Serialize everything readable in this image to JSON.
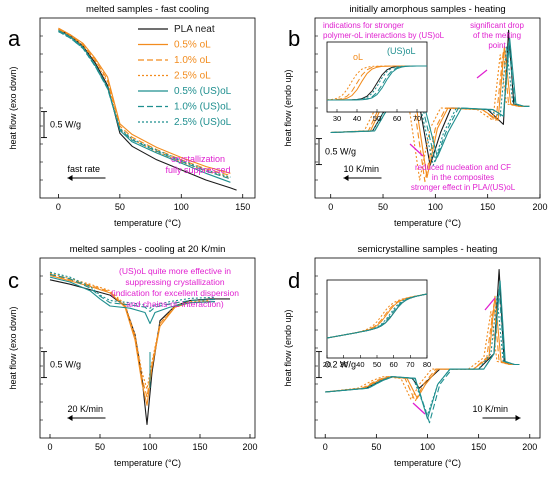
{
  "colors": {
    "pla": "#1a1a1a",
    "ol": "#f28c1e",
    "usol": "#1f8f8f",
    "annot": "#e020d0"
  },
  "legend": [
    "PLA neat",
    "0.5% oL",
    "1.0% oL",
    "2.5% oL",
    "0.5% (US)oL",
    "1.0% (US)oL",
    "2.5% (US)oL"
  ],
  "chart_data": [
    {
      "panel": "a",
      "type": "line",
      "title": "melted samples - fast cooling",
      "xlabel": "temperature (°C)",
      "ylabel": "heat flow (exo down)",
      "xlim": [
        -15,
        160
      ],
      "xticks": [
        0,
        50,
        100,
        150
      ],
      "scale_bar": "0.5 W/g",
      "rate_label": "fast rate",
      "annotations": [
        "crystallization",
        "fully suppressed"
      ],
      "legend_position": "top-right",
      "series": [
        {
          "name": "PLA neat",
          "x": [
            0,
            10,
            20,
            30,
            40,
            50,
            60,
            80,
            100,
            120,
            140,
            145
          ],
          "y": [
            2.9,
            2.78,
            2.6,
            2.3,
            1.9,
            1.05,
            0.82,
            0.58,
            0.4,
            0.22,
            0.08,
            0.04
          ]
        },
        {
          "name": "0.5% oL",
          "x": [
            0,
            10,
            20,
            30,
            40,
            50,
            60,
            80,
            100,
            120,
            140
          ],
          "y": [
            2.92,
            2.8,
            2.65,
            2.38,
            2.05,
            1.22,
            1.03,
            0.8,
            0.62,
            0.46,
            0.34
          ]
        },
        {
          "name": "1.0% oL",
          "x": [
            0,
            10,
            20,
            30,
            40,
            50,
            60,
            80,
            100,
            120,
            140
          ],
          "y": [
            2.9,
            2.79,
            2.63,
            2.35,
            2.0,
            1.18,
            0.98,
            0.76,
            0.58,
            0.42,
            0.3
          ]
        },
        {
          "name": "2.5% oL",
          "x": [
            0,
            10,
            20,
            30,
            40,
            50,
            60,
            80,
            100,
            120,
            140
          ],
          "y": [
            2.9,
            2.78,
            2.61,
            2.33,
            1.96,
            1.13,
            0.94,
            0.72,
            0.54,
            0.38,
            0.26
          ]
        },
        {
          "name": "0.5% (US)oL",
          "x": [
            0,
            10,
            20,
            30,
            40,
            50,
            60,
            80,
            100,
            120,
            140
          ],
          "y": [
            2.88,
            2.76,
            2.58,
            2.26,
            1.86,
            1.1,
            0.9,
            0.7,
            0.52,
            0.34,
            0.18
          ]
        },
        {
          "name": "1.0% (US)oL",
          "x": [
            0,
            10,
            20,
            30,
            40,
            50,
            60,
            80,
            100,
            120,
            140
          ],
          "y": [
            2.86,
            2.74,
            2.56,
            2.24,
            1.84,
            1.12,
            0.93,
            0.73,
            0.55,
            0.38,
            0.24
          ]
        },
        {
          "name": "2.5% (US)oL",
          "x": [
            0,
            10,
            20,
            30,
            40,
            50,
            60,
            80,
            100,
            120,
            140
          ],
          "y": [
            2.86,
            2.74,
            2.56,
            2.24,
            1.85,
            1.14,
            0.95,
            0.75,
            0.57,
            0.4,
            0.27
          ]
        }
      ]
    },
    {
      "panel": "b",
      "type": "line",
      "title": "initially amorphous samples - heating",
      "xlabel": "temperature (°C)",
      "ylabel": "heat flow (endo up)",
      "xlim": [
        -15,
        200
      ],
      "xticks": [
        0,
        50,
        100,
        150,
        200
      ],
      "scale_bar": "0.5 W/g",
      "rate_label": "10 K/min",
      "annotations": [
        "indications for stronger",
        "polymer-oL interactions by (US)oL",
        "significant drop",
        "of the melting",
        "point",
        "reduced nucleation and CF",
        "in the composites",
        "stronger effect in PLA/(US)oL"
      ],
      "inset": {
        "xlim": [
          25,
          75
        ],
        "xticks": [
          30,
          40,
          50,
          60,
          70
        ],
        "labels": [
          "oL",
          "(US)oL"
        ]
      },
      "series": [
        {
          "name": "PLA neat",
          "x": [
            0,
            40,
            55,
            65,
            85,
            95,
            105,
            115,
            150,
            165,
            170,
            175,
            180,
            190
          ],
          "y": [
            0,
            0.02,
            0.35,
            0.32,
            0.32,
            -0.4,
            0.0,
            0.3,
            0.28,
            0.1,
            1.25,
            0.35,
            0.32,
            0.32
          ]
        },
        {
          "name": "0.5% oL",
          "x": [
            0,
            38,
            50,
            62,
            82,
            92,
            102,
            112,
            145,
            160,
            166,
            172,
            180,
            190
          ],
          "y": [
            0,
            0.02,
            0.35,
            0.32,
            0.3,
            -0.55,
            0.05,
            0.3,
            0.28,
            0.15,
            1.05,
            0.35,
            0.32,
            0.32
          ]
        },
        {
          "name": "1.0% oL",
          "x": [
            0,
            36,
            48,
            60,
            80,
            90,
            100,
            110,
            145,
            158,
            165,
            170,
            180,
            190
          ],
          "y": [
            0,
            0.02,
            0.35,
            0.32,
            0.3,
            -0.6,
            0.05,
            0.3,
            0.28,
            0.15,
            1.0,
            0.35,
            0.32,
            0.32
          ]
        },
        {
          "name": "2.5% oL",
          "x": [
            0,
            32,
            45,
            58,
            75,
            85,
            95,
            105,
            140,
            155,
            162,
            168,
            180,
            190
          ],
          "y": [
            0,
            0.02,
            0.35,
            0.32,
            0.3,
            -0.58,
            0.05,
            0.3,
            0.28,
            0.15,
            0.95,
            0.35,
            0.32,
            0.32
          ]
        },
        {
          "name": "0.5% (US)oL",
          "x": [
            0,
            42,
            57,
            67,
            90,
            102,
            112,
            125,
            155,
            165,
            171,
            177,
            185,
            190
          ],
          "y": [
            0,
            0.02,
            0.35,
            0.32,
            0.3,
            -0.3,
            0.0,
            0.3,
            0.28,
            0.2,
            1.15,
            0.35,
            0.32,
            0.32
          ]
        },
        {
          "name": "1.0% (US)oL",
          "x": [
            0,
            42,
            57,
            67,
            88,
            100,
            110,
            122,
            155,
            165,
            170,
            176,
            185,
            190
          ],
          "y": [
            0,
            0.02,
            0.35,
            0.32,
            0.3,
            -0.35,
            0.0,
            0.3,
            0.28,
            0.2,
            1.1,
            0.35,
            0.32,
            0.32
          ]
        },
        {
          "name": "2.5% (US)oL",
          "x": [
            0,
            40,
            55,
            65,
            86,
            98,
            108,
            120,
            150,
            162,
            168,
            174,
            185,
            190
          ],
          "y": [
            0,
            0.02,
            0.35,
            0.32,
            0.3,
            -0.4,
            0.0,
            0.3,
            0.28,
            0.2,
            1.05,
            0.35,
            0.32,
            0.32
          ]
        }
      ]
    },
    {
      "panel": "c",
      "type": "line",
      "title": "melted samples - cooling at 20 K/min",
      "xlabel": "temperature (°C)",
      "ylabel": "heat flow (exo down)",
      "xlim": [
        -10,
        205
      ],
      "xticks": [
        0,
        50,
        100,
        150,
        200
      ],
      "scale_bar": "0.5 W/g",
      "rate_label": "20 K/min",
      "annotations": [
        "(US)oL quite more effective in",
        "suppressing crystallization",
        "(indication for excellent dispersion",
        "and chains-oL interaction)"
      ],
      "series": [
        {
          "name": "PLA neat",
          "x": [
            0,
            20,
            40,
            60,
            75,
            85,
            92,
            97,
            102,
            110,
            125,
            140,
            160,
            180
          ],
          "y": [
            1.1,
            1.02,
            0.92,
            0.82,
            0.62,
            0.1,
            -0.7,
            -1.55,
            -0.6,
            0.35,
            0.62,
            0.72,
            0.75,
            0.75
          ]
        },
        {
          "name": "0.5% oL",
          "x": [
            0,
            20,
            40,
            60,
            75,
            85,
            92,
            97,
            102,
            110,
            125,
            140,
            160
          ],
          "y": [
            1.18,
            1.08,
            0.98,
            0.86,
            0.6,
            0.0,
            -0.8,
            -1.2,
            -0.5,
            0.25,
            0.6,
            0.68,
            0.7
          ]
        },
        {
          "name": "1.0% oL",
          "x": [
            0,
            20,
            40,
            60,
            75,
            85,
            92,
            97,
            102,
            110,
            125,
            140,
            160
          ],
          "y": [
            1.2,
            1.1,
            1.0,
            0.88,
            0.62,
            0.05,
            -0.7,
            -1.05,
            -0.45,
            0.3,
            0.6,
            0.68,
            0.7
          ]
        },
        {
          "name": "2.5% oL",
          "x": [
            0,
            20,
            40,
            60,
            75,
            85,
            92,
            97,
            102,
            110,
            125,
            140,
            160
          ],
          "y": [
            1.22,
            1.12,
            1.02,
            0.9,
            0.65,
            0.1,
            -0.6,
            -0.9,
            -0.4,
            0.3,
            0.62,
            0.7,
            0.72
          ]
        },
        {
          "name": "0.5% (US)oL",
          "x": [
            0,
            20,
            40,
            50,
            60,
            80,
            95,
            100,
            105,
            120,
            140,
            165
          ],
          "y": [
            1.15,
            1.06,
            0.9,
            0.75,
            0.62,
            0.58,
            0.5,
            0.3,
            0.5,
            0.6,
            0.68,
            0.7
          ]
        },
        {
          "name": "1.0% (US)oL",
          "x": [
            0,
            20,
            40,
            50,
            60,
            80,
            95,
            100,
            105,
            120,
            140,
            165
          ],
          "y": [
            1.2,
            1.12,
            0.95,
            0.8,
            0.68,
            0.64,
            0.6,
            0.52,
            0.6,
            0.66,
            0.72,
            0.74
          ]
        },
        {
          "name": "2.5% (US)oL",
          "x": [
            0,
            20,
            40,
            50,
            60,
            80,
            95,
            100,
            105,
            120,
            140,
            165
          ],
          "y": [
            1.24,
            1.15,
            0.98,
            0.82,
            0.72,
            0.68,
            0.64,
            0.58,
            0.64,
            0.7,
            0.76,
            0.78
          ]
        }
      ]
    },
    {
      "panel": "d",
      "type": "line",
      "title": "semicrystalline samples - heating",
      "xlabel": "temperature (°C)",
      "ylabel": "heat flow (endo up)",
      "xlim": [
        -10,
        210
      ],
      "xticks": [
        0,
        50,
        100,
        150,
        200
      ],
      "scale_bar": "0.2 W/g",
      "rate_label": "10 K/min",
      "inset": {
        "xlim": [
          20,
          80
        ],
        "xticks": [
          20,
          30,
          40,
          50,
          60,
          70,
          80
        ]
      },
      "series": [
        {
          "name": "PLA neat",
          "x": [
            0,
            40,
            55,
            65,
            85,
            92,
            100,
            112,
            150,
            165,
            170,
            175,
            180,
            190
          ],
          "y": [
            0,
            0.05,
            0.15,
            0.2,
            0.18,
            0.05,
            0.15,
            0.3,
            0.3,
            0.5,
            1.6,
            0.4,
            0.36,
            0.36
          ]
        },
        {
          "name": "0.5% oL",
          "x": [
            0,
            38,
            52,
            62,
            80,
            90,
            98,
            110,
            145,
            160,
            166,
            172,
            180,
            190
          ],
          "y": [
            0,
            0.05,
            0.15,
            0.2,
            0.18,
            -0.08,
            0.1,
            0.3,
            0.3,
            0.45,
            1.25,
            0.4,
            0.36,
            0.36
          ]
        },
        {
          "name": "1.0% oL",
          "x": [
            0,
            36,
            50,
            60,
            78,
            88,
            96,
            108,
            145,
            158,
            165,
            170,
            180,
            190
          ],
          "y": [
            0,
            0.05,
            0.15,
            0.2,
            0.18,
            -0.12,
            0.1,
            0.3,
            0.3,
            0.45,
            1.15,
            0.4,
            0.36,
            0.36
          ]
        },
        {
          "name": "2.5% oL",
          "x": [
            0,
            32,
            46,
            56,
            74,
            84,
            92,
            104,
            140,
            155,
            162,
            168,
            180,
            190
          ],
          "y": [
            0,
            0.05,
            0.15,
            0.2,
            0.18,
            -0.1,
            0.1,
            0.3,
            0.3,
            0.45,
            1.05,
            0.4,
            0.36,
            0.36
          ]
        },
        {
          "name": "0.5% (US)oL",
          "x": [
            0,
            42,
            56,
            66,
            88,
            100,
            110,
            122,
            155,
            165,
            171,
            176,
            185,
            190
          ],
          "y": [
            0,
            0.05,
            0.15,
            0.2,
            0.18,
            -0.35,
            0.1,
            0.3,
            0.3,
            0.5,
            1.45,
            0.4,
            0.36,
            0.36
          ]
        },
        {
          "name": "1.0% (US)oL",
          "x": [
            0,
            42,
            56,
            66,
            88,
            102,
            112,
            124,
            155,
            165,
            170,
            175,
            185,
            190
          ],
          "y": [
            0,
            0.05,
            0.15,
            0.2,
            0.18,
            -0.4,
            0.1,
            0.3,
            0.3,
            0.5,
            1.35,
            0.4,
            0.36,
            0.36
          ]
        },
        {
          "name": "2.5% (US)oL",
          "x": [
            0,
            40,
            54,
            64,
            86,
            100,
            110,
            122,
            150,
            162,
            168,
            174,
            185,
            190
          ],
          "y": [
            0,
            0.05,
            0.15,
            0.2,
            0.18,
            -0.3,
            0.1,
            0.3,
            0.3,
            0.5,
            1.25,
            0.4,
            0.36,
            0.36
          ]
        }
      ]
    }
  ]
}
